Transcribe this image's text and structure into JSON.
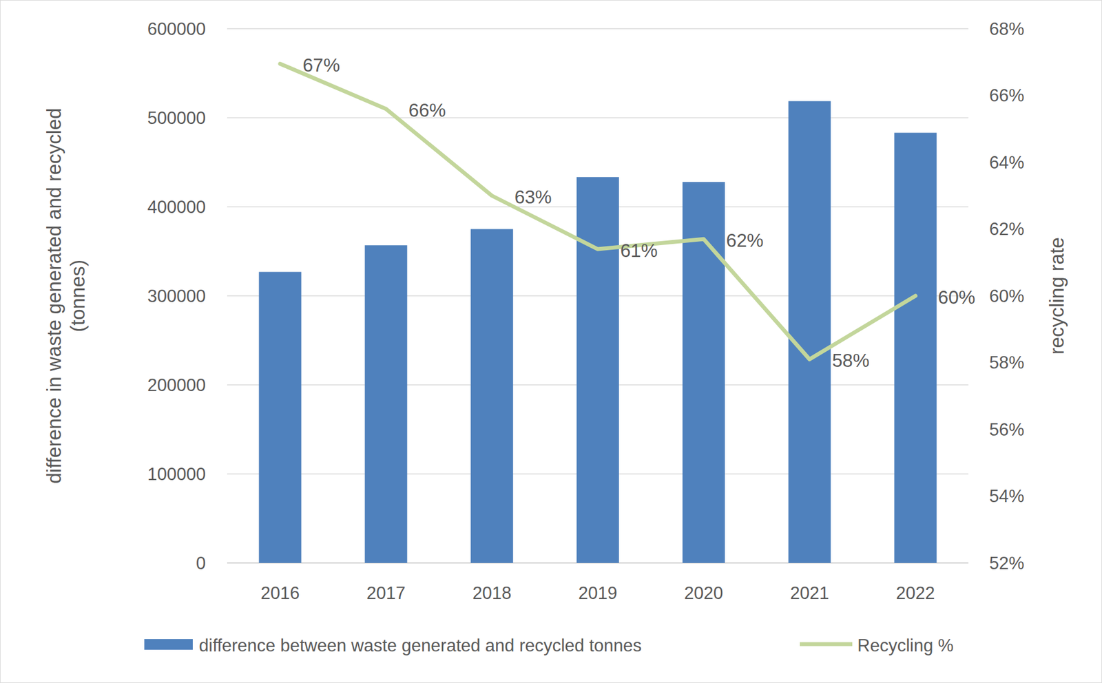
{
  "chart_data": {
    "type": "bar",
    "categories": [
      "2016",
      "2017",
      "2018",
      "2019",
      "2020",
      "2021",
      "2022"
    ],
    "series": [
      {
        "name": "difference between waste generated and recycled tonnes",
        "type": "bar",
        "color": "#4f81bd",
        "values": [
          326900,
          356800,
          375000,
          433400,
          427900,
          518700,
          483200
        ]
      },
      {
        "name": "Recycling %",
        "type": "line",
        "color": "#c3d69b",
        "axis": "y2",
        "marker": "none",
        "line_style": "solid",
        "data_labels": true,
        "values": [
          66.95,
          65.6,
          63.0,
          61.4,
          61.7,
          58.1,
          60.0
        ],
        "value_labels": [
          "67%",
          "66%",
          "63%",
          "61%",
          "62%",
          "58%",
          "60%"
        ]
      }
    ],
    "y_label": "difference in waste generated and recycled\n(tonnes)",
    "y2_label": "recycling rate",
    "ylim": [
      0,
      600000
    ],
    "yticks": [
      0,
      100000,
      200000,
      300000,
      400000,
      500000,
      600000
    ],
    "y2lim": [
      52,
      68
    ],
    "y2ticks": [
      {
        "value": 52,
        "label": "52%"
      },
      {
        "value": 54,
        "label": "54%"
      },
      {
        "value": 56,
        "label": "56%"
      },
      {
        "value": 58,
        "label": "58%"
      },
      {
        "value": 60,
        "label": "60%"
      },
      {
        "value": 62,
        "label": "62%"
      },
      {
        "value": 64,
        "label": "64%"
      },
      {
        "value": 66,
        "label": "66%"
      },
      {
        "value": 68,
        "label": "68%"
      }
    ],
    "grid": true,
    "legend": "bottom"
  }
}
